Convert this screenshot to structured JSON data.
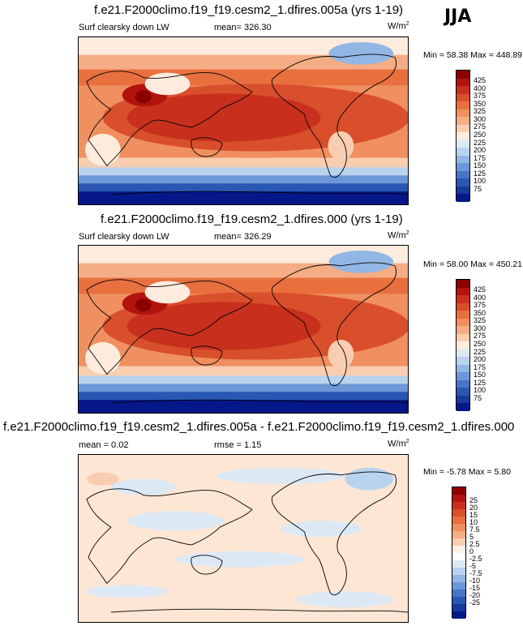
{
  "season": "JJA",
  "panels": [
    {
      "title": "f.e21.F2000climo.f19_f19.cesm2_1.dfires.005a (yrs 1-19)",
      "variable": "Surf clearsky down LW",
      "mean_label": "mean= 326.30",
      "units": "W/m",
      "units_exp": "2",
      "minmax": "Min = 58.38 Max = 448.89",
      "colorbar": {
        "colors": [
          "#8b0000",
          "#b2130e",
          "#c8301d",
          "#d94f2c",
          "#e8703f",
          "#f08f5f",
          "#f5ad85",
          "#f9cdb0",
          "#fdebdd",
          "#dce9f5",
          "#b9d3ee",
          "#93b7e4",
          "#6c98d8",
          "#4776c7",
          "#2a56b4",
          "#173a9c",
          "#06178a"
        ],
        "labels": [
          "425",
          "400",
          "375",
          "350",
          "325",
          "300",
          "275",
          "250",
          "225",
          "200",
          "175",
          "150",
          "125",
          "100",
          "75"
        ]
      }
    },
    {
      "title": "f.e21.F2000climo.f19_f19.cesm2_1.dfires.000 (yrs 1-19)",
      "variable": "Surf clearsky down LW",
      "mean_label": "mean= 326.29",
      "units": "W/m",
      "units_exp": "2",
      "minmax": "Min = 58.00 Max = 450.21",
      "colorbar": {
        "colors": [
          "#8b0000",
          "#b2130e",
          "#c8301d",
          "#d94f2c",
          "#e8703f",
          "#f08f5f",
          "#f5ad85",
          "#f9cdb0",
          "#fdebdd",
          "#dce9f5",
          "#b9d3ee",
          "#93b7e4",
          "#6c98d8",
          "#4776c7",
          "#2a56b4",
          "#173a9c",
          "#06178a"
        ],
        "labels": [
          "425",
          "400",
          "375",
          "350",
          "325",
          "300",
          "275",
          "250",
          "225",
          "200",
          "175",
          "150",
          "125",
          "100",
          "75"
        ]
      }
    },
    {
      "title": "f.e21.F2000climo.f19_f19.cesm2_1.dfires.005a - f.e21.F2000climo.f19_f19.cesm2_1.dfires.000",
      "variable": "mean =  0.02",
      "mean_label": "rmse =  1.15",
      "units": "W/m",
      "units_exp": "2",
      "minmax": "Min = -5.78 Max =  5.80",
      "colorbar": {
        "colors": [
          "#8b0000",
          "#b2130e",
          "#c8301d",
          "#d94f2c",
          "#e8703f",
          "#f08f5f",
          "#f5ad85",
          "#f9cdb0",
          "#fdf0e6",
          "#ffffff",
          "#dce9f5",
          "#b9d3ee",
          "#93b7e4",
          "#6c98d8",
          "#4776c7",
          "#2a56b4",
          "#173a9c",
          "#06178a"
        ],
        "labels": [
          "25",
          "20",
          "15",
          "10",
          "7.5",
          "5",
          "2.5",
          "0",
          "-2.5",
          "-5",
          "-7.5",
          "-10",
          "-15",
          "-20",
          "-25"
        ]
      }
    }
  ],
  "colors": {
    "tropics_hot": "#c8301d",
    "polar_cold": "#06178a",
    "diff_warm": "#fde6d4",
    "diff_cool": "#dce9f5"
  }
}
